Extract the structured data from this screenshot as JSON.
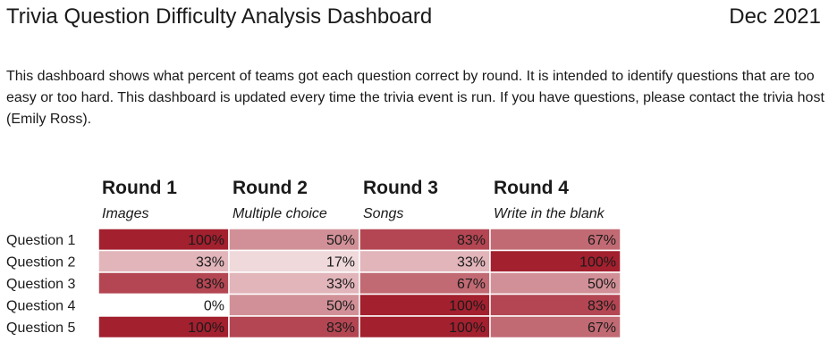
{
  "header": {
    "title": "Trivia Question Difficulty Analysis Dashboard",
    "date": "Dec 2021"
  },
  "description": "This dashboard shows what percent of teams got each question correct by round. It is intended to identify questions that are too easy or too hard. This dashboard is updated every time the trivia event is run. If you have questions, please contact the trivia host (Emily Ross).",
  "colors": {
    "low": "#ffffff",
    "high": "#a3202e",
    "text": "#1a1a1a"
  },
  "chart_data": {
    "type": "heatmap",
    "columns": [
      {
        "name": "Round 1",
        "subtitle": "Images"
      },
      {
        "name": "Round 2",
        "subtitle": "Multiple choice"
      },
      {
        "name": "Round 3",
        "subtitle": "Songs"
      },
      {
        "name": "Round 4",
        "subtitle": "Write in the blank"
      }
    ],
    "rows": [
      "Question 1",
      "Question 2",
      "Question 3",
      "Question 4",
      "Question 5"
    ],
    "values": [
      [
        100,
        50,
        83,
        67
      ],
      [
        33,
        17,
        33,
        100
      ],
      [
        83,
        33,
        67,
        50
      ],
      [
        0,
        50,
        100,
        83
      ],
      [
        100,
        83,
        100,
        67
      ]
    ],
    "value_format": "percent"
  }
}
